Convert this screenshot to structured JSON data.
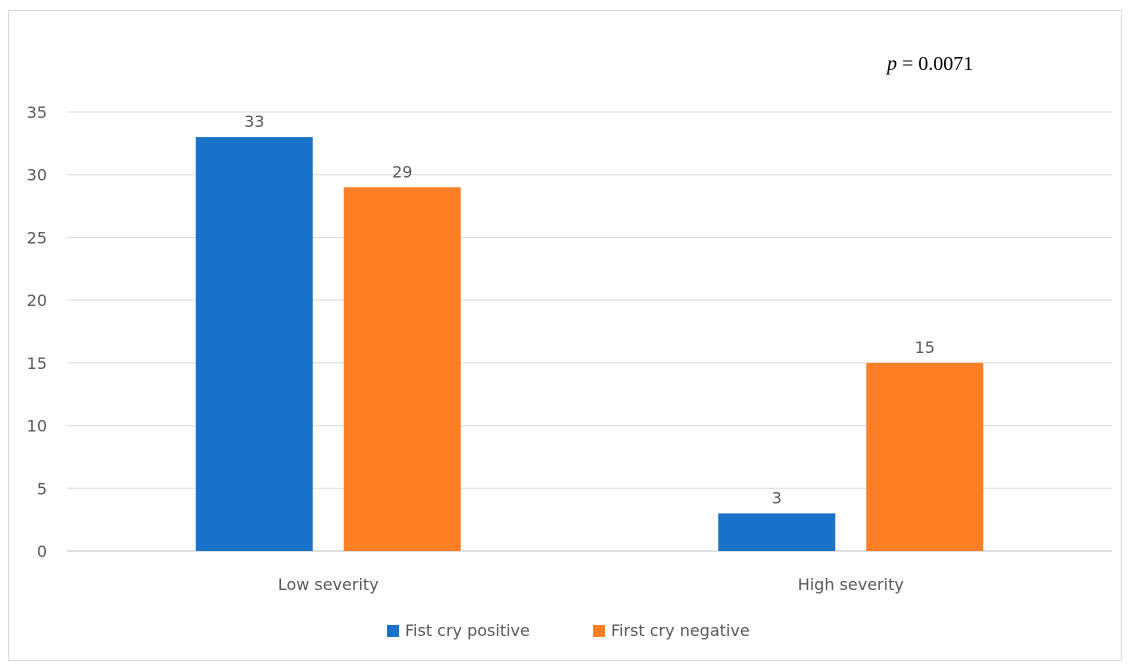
{
  "chart_data": {
    "type": "bar",
    "categories": [
      "Low severity",
      "High severity"
    ],
    "series": [
      {
        "name": "Fist cry positive",
        "values": [
          33,
          3
        ],
        "color": "#1872C8"
      },
      {
        "name": "First cry negative",
        "values": [
          29,
          15
        ],
        "color": "#FF7F27"
      }
    ],
    "ylim": [
      0,
      35
    ],
    "yticks": [
      0,
      5,
      10,
      15,
      20,
      25,
      30,
      35
    ],
    "grid": true,
    "legend": "bottom",
    "data_labels": true,
    "annotation": {
      "italic": "p",
      "text": " = 0.0071"
    }
  }
}
